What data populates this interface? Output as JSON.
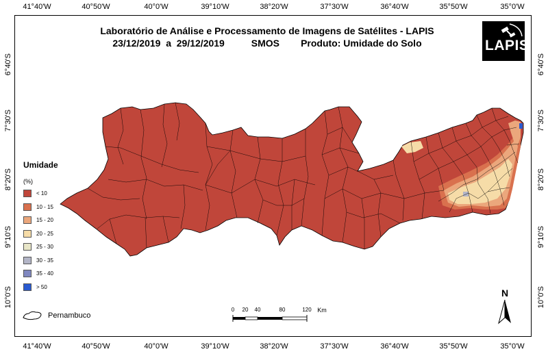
{
  "title": {
    "line1": "Laboratório de Análise e Processamento de Imagens de Satélites - LAPIS",
    "line2": "23/12/2019  a  29/12/2019          SMOS        Produto: Umidade do Solo"
  },
  "logo_text": "LAPIS",
  "lon_ticks": [
    "41°40'W",
    "40°50'W",
    "40°0'W",
    "39°10'W",
    "38°20'W",
    "37°30'W",
    "36°40'W",
    "35°50'W",
    "35°0'W"
  ],
  "lat_ticks": [
    "6°40'S",
    "7°30'S",
    "8°20'S",
    "9°10'S",
    "10°0'S"
  ],
  "legend": {
    "title": "Umidade",
    "unit": "(%)",
    "items": [
      {
        "label": "< 10",
        "color": "#c0463a"
      },
      {
        "label": "10 - 15",
        "color": "#d9714e"
      },
      {
        "label": "15 - 20",
        "color": "#eba77c"
      },
      {
        "label": "20 - 25",
        "color": "#f6dca8"
      },
      {
        "label": "25 - 30",
        "color": "#e8e6c8"
      },
      {
        "label": "30 - 35",
        "color": "#b3b5c7"
      },
      {
        "label": "35 - 40",
        "color": "#8088c0"
      },
      {
        "label": "> 50",
        "color": "#2a5ad0"
      }
    ]
  },
  "state_legend": "Pernambuco",
  "scale": {
    "labels": [
      "0",
      "20",
      "40",
      "80",
      "120"
    ],
    "unit": "Km"
  },
  "north_label": "N"
}
